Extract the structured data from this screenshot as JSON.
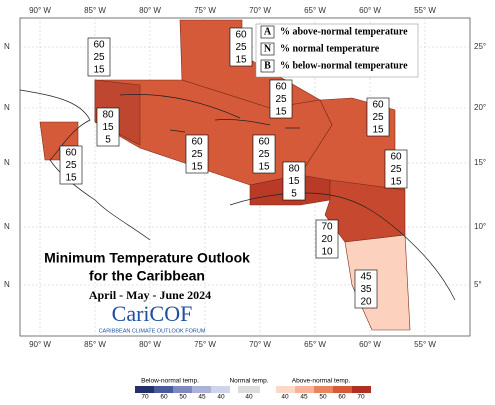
{
  "map": {
    "lon_labels": [
      "90° W",
      "85° W",
      "80° W",
      "75° W",
      "70° W",
      "65° W",
      "60° W",
      "55° W"
    ],
    "lat_left": [
      "N",
      "N",
      "N",
      "N",
      "N"
    ],
    "lat_right": [
      "25°",
      "20°",
      "15°",
      "10°",
      "5°"
    ],
    "legend": [
      {
        "key": "A",
        "text": "% above-normal temperature"
      },
      {
        "key": "N",
        "text": "% normal temperature"
      },
      {
        "key": "B",
        "text": "% below-normal temperature"
      }
    ],
    "regions": [
      {
        "A": 60,
        "N": 25,
        "B": 15
      },
      {
        "A": 60,
        "N": 25,
        "B": 15
      },
      {
        "A": 60,
        "N": 25,
        "B": 15
      },
      {
        "A": 60,
        "N": 25,
        "B": 15
      },
      {
        "A": 80,
        "N": 15,
        "B": 5
      },
      {
        "A": 60,
        "N": 25,
        "B": 15
      },
      {
        "A": 60,
        "N": 25,
        "B": 15
      },
      {
        "A": 60,
        "N": 25,
        "B": 15
      },
      {
        "A": 60,
        "N": 25,
        "B": 15
      },
      {
        "A": 80,
        "N": 15,
        "B": 5
      },
      {
        "A": 70,
        "N": 20,
        "B": 10
      },
      {
        "A": 45,
        "N": 35,
        "B": 20
      }
    ]
  },
  "title": {
    "line1": "Minimum Temperature Outlook",
    "line2": "for the Caribbean",
    "period": "April - May - June 2024",
    "logo": "CariCOF",
    "logo_sub": "CARIBBEAN CLIMATE OUTLOOK FORUM"
  },
  "colorbar": {
    "below": {
      "label": "Below-normal temp.",
      "ticks": [
        "70",
        "60",
        "50",
        "45",
        "40"
      ]
    },
    "normal": {
      "label": "Normal temp.",
      "ticks": [
        "40"
      ]
    },
    "above": {
      "label": "Above-normal temp.",
      "ticks": [
        "40",
        "45",
        "50",
        "60",
        "70"
      ]
    }
  }
}
